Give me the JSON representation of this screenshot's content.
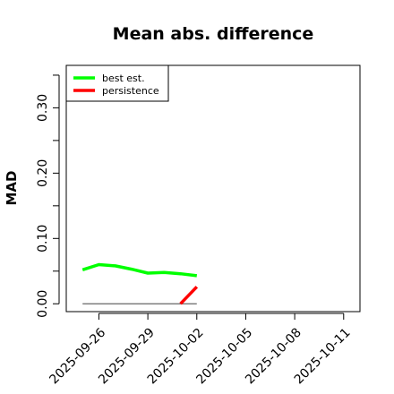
{
  "chart_data": {
    "type": "line",
    "title": "Mean abs. difference",
    "ylabel": "MAD",
    "xlabel": "",
    "x_tick_labels": [
      "2025-09-26",
      "2025-09-29",
      "2025-10-02",
      "2025-10-05",
      "2025-10-08",
      "2025-10-11"
    ],
    "y_tick_labels": [
      "0.00",
      "0.10",
      "0.20",
      "0.30"
    ],
    "y_ticks": [
      0.0,
      0.05,
      0.1,
      0.15,
      0.2,
      0.25,
      0.3,
      0.35
    ],
    "xlim": [
      "2025-09-24",
      "2025-10-12"
    ],
    "ylim": [
      -0.012,
      0.365
    ],
    "legend_position": "top-left",
    "grid": false,
    "series": [
      {
        "name": "best est.",
        "color": "#00ff00",
        "x": [
          "2025-09-25",
          "2025-09-26",
          "2025-09-27",
          "2025-09-28",
          "2025-09-29",
          "2025-09-30",
          "2025-10-01",
          "2025-10-02"
        ],
        "y": [
          0.052,
          0.06,
          0.058,
          0.053,
          0.047,
          0.048,
          0.046,
          0.043
        ]
      },
      {
        "name": "persistence",
        "color": "#ff0000",
        "x": [
          "2025-10-01",
          "2025-10-02"
        ],
        "y": [
          0.0,
          0.026
        ]
      }
    ],
    "reference_line": {
      "color": "#666666",
      "x": [
        "2025-09-25",
        "2025-10-02"
      ],
      "y": [
        0.0,
        0.0
      ]
    }
  }
}
